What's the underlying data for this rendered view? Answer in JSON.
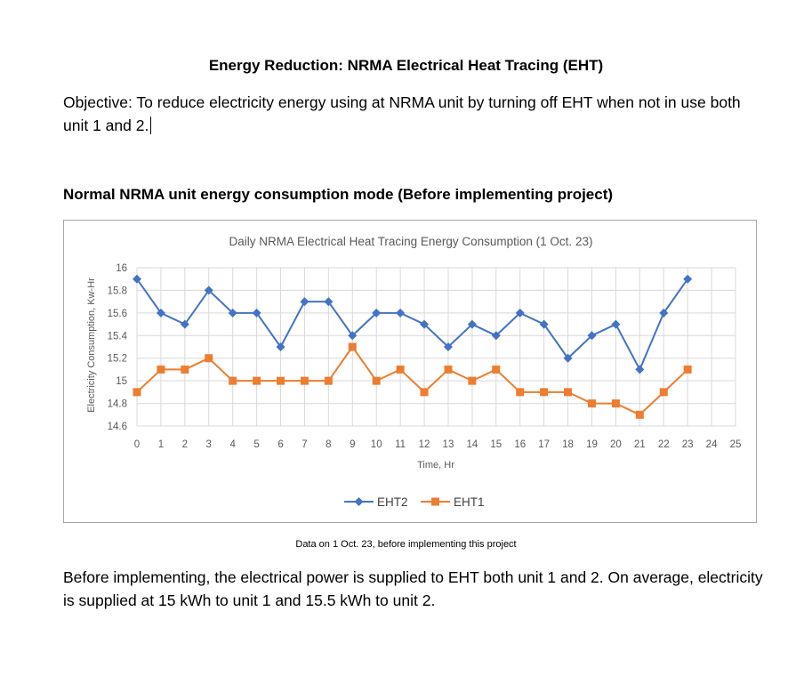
{
  "document": {
    "title": "Energy Reduction: NRMA Electrical Heat Tracing (EHT)",
    "objective": "Objective: To reduce electricity energy using at NRMA unit by turning off EHT when not in use both unit 1 and 2.",
    "section_heading": "Normal NRMA unit energy consumption mode (Before implementing project)",
    "caption": "Data on 1 Oct. 23, before implementing this project",
    "conclusion": "Before implementing, the electrical power is supplied to EHT both unit 1 and 2. On average, electricity is supplied at 15 kWh to unit 1 and 15.5 kWh to unit 2."
  },
  "chart_data": {
    "type": "line",
    "title": "Daily NRMA Electrical Heat Tracing Energy Consumption (1 Oct. 23)",
    "xlabel": "Time, Hr",
    "ylabel": "Electricity Consumption, Kw-Hr",
    "xlim": [
      0,
      25
    ],
    "ylim": [
      14.6,
      16
    ],
    "x_ticks": [
      0,
      1,
      2,
      3,
      4,
      5,
      6,
      7,
      8,
      9,
      10,
      11,
      12,
      13,
      14,
      15,
      16,
      17,
      18,
      19,
      20,
      21,
      22,
      23,
      24,
      25
    ],
    "y_ticks": [
      14.6,
      14.8,
      15,
      15.2,
      15.4,
      15.6,
      15.8,
      16
    ],
    "y_tick_labels": [
      "14.6",
      "14.8",
      "15",
      "15.2",
      "15.4",
      "15.6",
      "15.8",
      "16"
    ],
    "grid": true,
    "legend_position": "bottom",
    "x": [
      0,
      1,
      2,
      3,
      4,
      5,
      6,
      7,
      8,
      9,
      10,
      11,
      12,
      13,
      14,
      15,
      16,
      17,
      18,
      19,
      20,
      21,
      22,
      23
    ],
    "series": [
      {
        "name": "EHT2",
        "color": "#4472c4",
        "marker": "diamond",
        "values": [
          15.9,
          15.6,
          15.5,
          15.8,
          15.6,
          15.6,
          15.3,
          15.7,
          15.7,
          15.4,
          15.6,
          15.6,
          15.5,
          15.3,
          15.5,
          15.4,
          15.6,
          15.5,
          15.2,
          15.4,
          15.5,
          15.1,
          15.6,
          15.9
        ]
      },
      {
        "name": "EHT1",
        "color": "#ed7d31",
        "marker": "square",
        "values": [
          14.9,
          15.1,
          15.1,
          15.2,
          15.0,
          15.0,
          15.0,
          15.0,
          15.0,
          15.3,
          15.0,
          15.1,
          14.9,
          15.1,
          15.0,
          15.1,
          14.9,
          14.9,
          14.9,
          14.8,
          14.8,
          14.7,
          14.9,
          15.1
        ]
      }
    ]
  }
}
